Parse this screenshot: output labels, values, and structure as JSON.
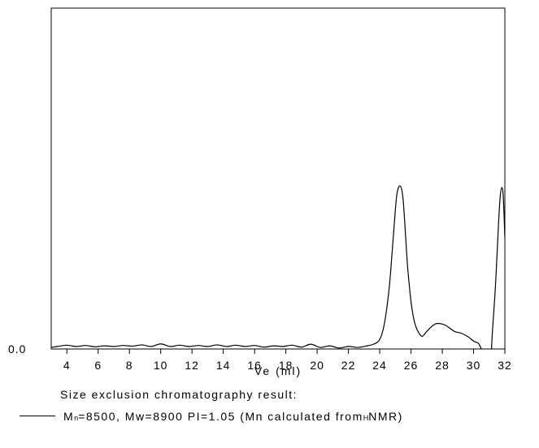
{
  "chart_data": {
    "type": "line",
    "title": "",
    "xlabel": "Ve (ml)",
    "ylabel": "",
    "xlim": [
      3,
      32
    ],
    "ylim": [
      0,
      1
    ],
    "xticks": [
      4,
      6,
      8,
      10,
      12,
      14,
      16,
      18,
      20,
      22,
      24,
      26,
      28,
      30,
      32
    ],
    "ytick_labels": [
      "0.0"
    ],
    "grid": false,
    "series": [
      {
        "x": [
          3.0,
          3.4,
          4.0,
          4.6,
          5.2,
          5.8,
          6.4,
          7.0,
          7.6,
          8.2,
          8.8,
          9.4,
          10.0,
          10.6,
          11.2,
          11.8,
          12.4,
          13.0,
          13.6,
          14.2,
          14.8,
          15.4,
          16.0,
          16.6,
          17.2,
          17.8,
          18.4,
          19.0,
          19.6,
          20.2,
          20.8,
          21.4,
          22.0,
          22.6,
          23.2,
          23.6,
          24.0,
          24.3,
          24.6,
          24.8,
          25.0,
          25.1,
          25.2,
          25.3,
          25.4,
          25.5,
          25.6,
          25.7,
          25.8,
          26.0,
          26.2,
          26.4,
          26.7,
          27.0,
          27.3,
          27.6,
          27.9,
          28.2,
          28.5,
          28.8,
          29.2,
          29.6,
          30.0,
          30.3,
          30.5,
          30.6,
          30.8,
          31.0,
          31.2,
          31.4,
          31.6,
          31.7,
          31.8,
          31.9,
          32.0
        ],
        "y": [
          0.005,
          0.008,
          0.012,
          0.008,
          0.011,
          0.007,
          0.01,
          0.008,
          0.011,
          0.009,
          0.013,
          0.008,
          0.016,
          0.008,
          0.012,
          0.008,
          0.011,
          0.008,
          0.013,
          0.008,
          0.012,
          0.008,
          0.011,
          0.006,
          0.01,
          0.008,
          0.012,
          0.006,
          0.015,
          0.005,
          0.01,
          0.003,
          0.008,
          0.005,
          0.01,
          0.015,
          0.03,
          0.08,
          0.19,
          0.31,
          0.44,
          0.49,
          0.51,
          0.515,
          0.505,
          0.47,
          0.4,
          0.32,
          0.25,
          0.15,
          0.09,
          0.06,
          0.04,
          0.055,
          0.07,
          0.08,
          0.08,
          0.075,
          0.065,
          0.055,
          0.05,
          0.04,
          0.025,
          0.018,
          0.0,
          -0.01,
          -0.06,
          -0.12,
          0.05,
          0.2,
          0.4,
          0.48,
          0.51,
          0.48,
          0.35
        ]
      }
    ],
    "caption_title": "Size exclusion chromatography result:",
    "legend": {
      "m_symbol": "M",
      "m_sub": "n",
      "text_a": "=8500, Mw=8900   PI=1.05 (Mn calculated from ",
      "sup": "H",
      "text_b": "NMR)"
    }
  }
}
